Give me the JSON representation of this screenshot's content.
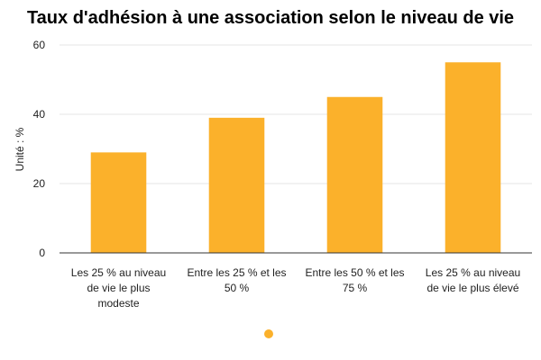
{
  "chart_data": {
    "type": "bar",
    "title": "Taux d'adhésion à une association selon le niveau de vie",
    "ylabel": "Unité : %",
    "xlabel": "",
    "ylim": [
      0,
      60
    ],
    "yticks": [
      0,
      20,
      40,
      60
    ],
    "grid": true,
    "legend": "bottom",
    "color": "#FBB12B",
    "categories": [
      [
        "Les 25 % au niveau",
        "de vie le plus",
        "modeste"
      ],
      [
        "Entre les 25 % et les",
        "50 %"
      ],
      [
        "Entre les 50 % et les",
        "75 %"
      ],
      [
        "Les 25 % au niveau",
        "de vie le plus élevé"
      ]
    ],
    "values": [
      29,
      39,
      45,
      55
    ]
  }
}
